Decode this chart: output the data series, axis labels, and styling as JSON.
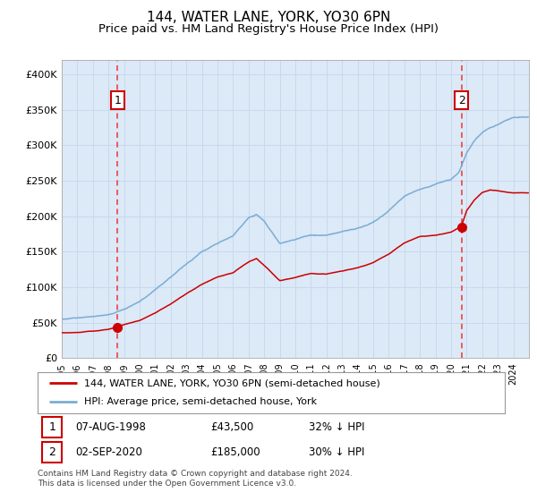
{
  "title": "144, WATER LANE, YORK, YO30 6PN",
  "subtitle": "Price paid vs. HM Land Registry's House Price Index (HPI)",
  "title_fontsize": 11,
  "subtitle_fontsize": 9.5,
  "bg_color": "#dce9f7",
  "fig_bg_color": "#ffffff",
  "grid_color": "#c8d8ee",
  "red_line_color": "#cc0000",
  "blue_line_color": "#7aadd4",
  "marker_color": "#cc0000",
  "dashed_color": "#ee3333",
  "ylim": [
    0,
    420000
  ],
  "yticks": [
    0,
    50000,
    100000,
    150000,
    200000,
    250000,
    300000,
    350000,
    400000
  ],
  "ytick_labels": [
    "£0",
    "£50K",
    "£100K",
    "£150K",
    "£200K",
    "£250K",
    "£300K",
    "£350K",
    "£400K"
  ],
  "sale1_date_year": 1998.58,
  "sale1_price": 43500,
  "sale2_date_year": 2020.67,
  "sale2_price": 185000,
  "legend_red": "144, WATER LANE, YORK, YO30 6PN (semi-detached house)",
  "legend_blue": "HPI: Average price, semi-detached house, York",
  "note1_date": "07-AUG-1998",
  "note1_price": "£43,500",
  "note1_pct": "32% ↓ HPI",
  "note2_date": "02-SEP-2020",
  "note2_price": "£185,000",
  "note2_pct": "30% ↓ HPI",
  "footer": "Contains HM Land Registry data © Crown copyright and database right 2024.\nThis data is licensed under the Open Government Licence v3.0.",
  "xstart": 1995.0,
  "xend": 2025.0
}
